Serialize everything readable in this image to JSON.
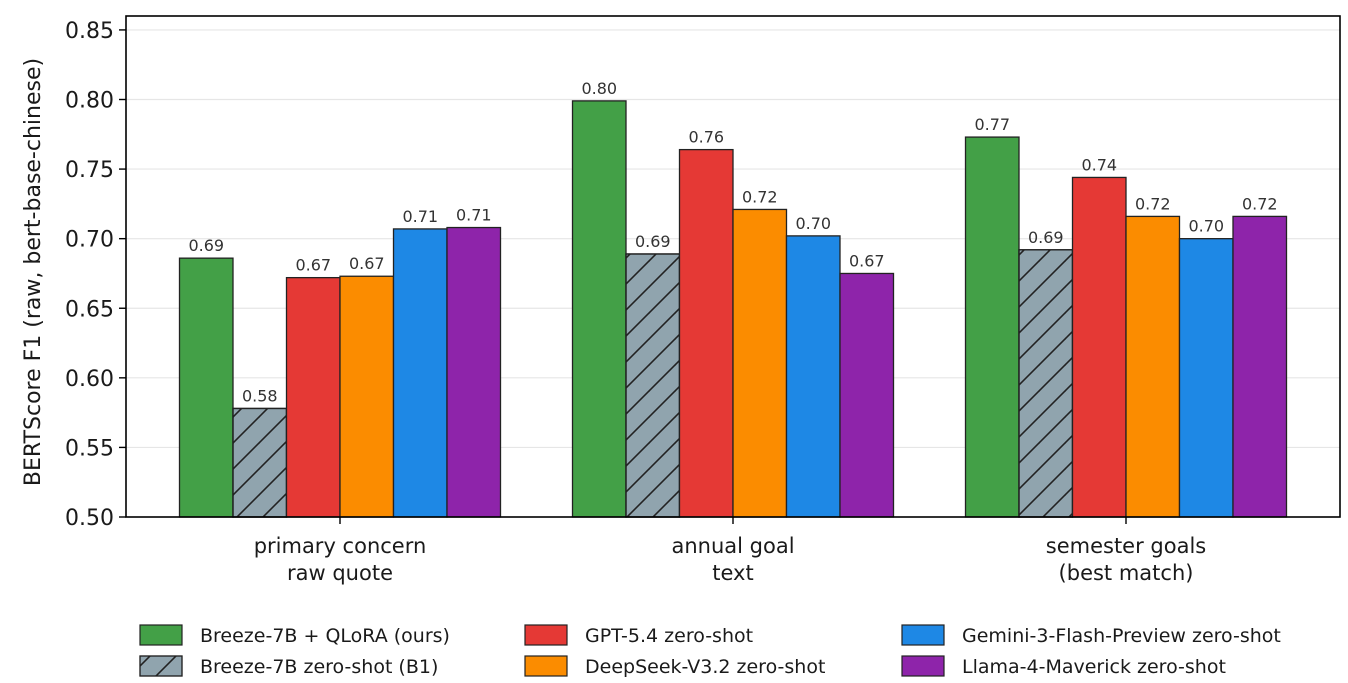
{
  "chart_data": {
    "type": "bar",
    "ylabel": "BERTScore F1 (raw, bert-base-chinese)",
    "ylim": [
      0.5,
      0.86
    ],
    "yticks": [
      0.5,
      0.55,
      0.6,
      0.65,
      0.7,
      0.75,
      0.8,
      0.85
    ],
    "ytick_labels": [
      "0.50",
      "0.55",
      "0.60",
      "0.65",
      "0.70",
      "0.75",
      "0.80",
      "0.85"
    ],
    "grid": "horizontal",
    "legend_position": "bottom",
    "categories": [
      [
        "primary concern",
        "raw quote"
      ],
      [
        "annual goal",
        "text"
      ],
      [
        "semester goals",
        "(best match)"
      ]
    ],
    "series": [
      {
        "name": "Breeze-7B + QLoRA (ours)",
        "color": "#43a047",
        "hatch": false,
        "values": [
          0.686,
          0.799,
          0.773
        ],
        "labels": [
          "0.69",
          "0.80",
          "0.77"
        ]
      },
      {
        "name": "Breeze-7B zero-shot (B1)",
        "color": "#90a4ae",
        "hatch": true,
        "values": [
          0.578,
          0.689,
          0.692
        ],
        "labels": [
          "0.58",
          "0.69",
          "0.69"
        ]
      },
      {
        "name": "GPT-5.4 zero-shot",
        "color": "#e53935",
        "hatch": false,
        "values": [
          0.672,
          0.764,
          0.744
        ],
        "labels": [
          "0.67",
          "0.76",
          "0.74"
        ]
      },
      {
        "name": "DeepSeek-V3.2 zero-shot",
        "color": "#fb8c00",
        "hatch": false,
        "values": [
          0.673,
          0.721,
          0.716
        ],
        "labels": [
          "0.67",
          "0.72",
          "0.72"
        ]
      },
      {
        "name": "Gemini-3-Flash-Preview zero-shot",
        "color": "#1e88e5",
        "hatch": false,
        "values": [
          0.707,
          0.702,
          0.7
        ],
        "labels": [
          "0.71",
          "0.70",
          "0.70"
        ]
      },
      {
        "name": "Llama-4-Maverick zero-shot",
        "color": "#8e24aa",
        "hatch": false,
        "values": [
          0.708,
          0.675,
          0.716
        ],
        "labels": [
          "0.71",
          "0.67",
          "0.72"
        ]
      }
    ]
  }
}
